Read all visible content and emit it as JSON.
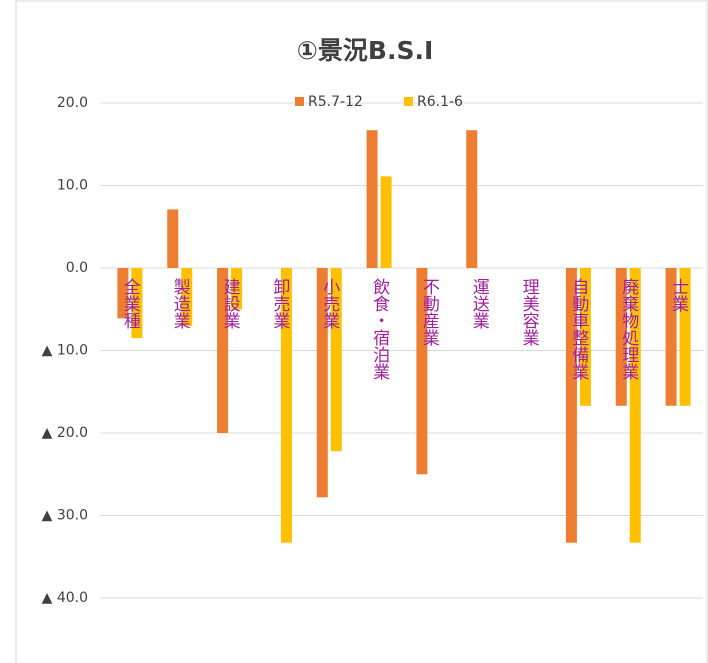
{
  "chart_data": {
    "type": "bar",
    "title": "①景況B.S.I",
    "categories": [
      "全業種",
      "製造業",
      "建設業",
      "卸売業",
      "小売業",
      "飲食・宿泊業",
      "不動産業",
      "運送業",
      "理美容業",
      "自動車整備業",
      "廃棄物処理業",
      "士業"
    ],
    "series": [
      {
        "name": "R5.7-12",
        "color": "#ed7d31",
        "values": [
          -6.1,
          7.1,
          -20,
          0,
          -27.8,
          16.7,
          -25,
          16.7,
          0,
          -33.3,
          -16.7,
          -16.7
        ]
      },
      {
        "name": "R6.1-6",
        "color": "#ffc000",
        "values": [
          -8.5,
          -7,
          -5,
          -33.3,
          -22.2,
          11.1,
          0,
          0,
          0,
          -16.7,
          -33.3,
          -16.7
        ]
      }
    ],
    "ylim": [
      -45,
      22
    ],
    "yticks": [
      {
        "value": 20,
        "label": "20.0"
      },
      {
        "value": 10,
        "label": "10.0"
      },
      {
        "value": 0,
        "label": "0.0"
      },
      {
        "value": -10,
        "label": "▲ 10.0"
      },
      {
        "value": -20,
        "label": "▲ 20.0"
      },
      {
        "value": -30,
        "label": "▲ 30.0"
      },
      {
        "value": -40,
        "label": "▲ 40.0"
      }
    ],
    "grid": true,
    "legend": "top"
  }
}
